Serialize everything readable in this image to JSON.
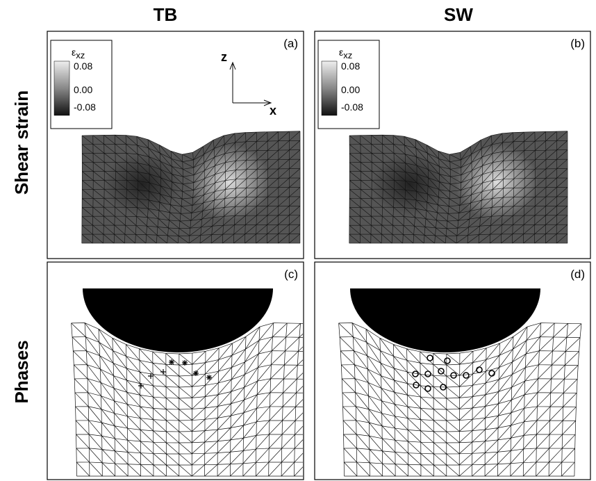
{
  "columns": [
    "TB",
    "SW"
  ],
  "rows": [
    "Shear strain",
    "Phases"
  ],
  "panels": [
    {
      "label": "(a)"
    },
    {
      "label": "(b)"
    },
    {
      "label": "(c)"
    },
    {
      "label": "(d)"
    }
  ],
  "colorbar": {
    "symbol": "ε",
    "subscript": "xz",
    "ticks": [
      "0.08",
      "0.00",
      "-0.08"
    ]
  },
  "axes": {
    "z": "z",
    "x": "x"
  }
}
